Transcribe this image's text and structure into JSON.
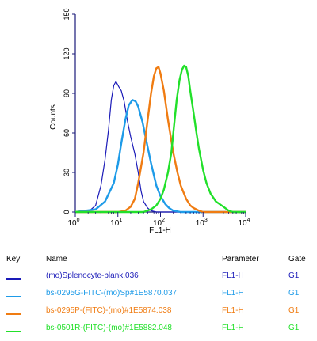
{
  "chart_data": {
    "type": "line",
    "xlabel": "FL1-H",
    "ylabel": "Counts",
    "x_scale": "log",
    "xlim": [
      1,
      10000
    ],
    "ylim": [
      0,
      150
    ],
    "x_ticks": [
      {
        "base": "10",
        "exp": "0"
      },
      {
        "base": "10",
        "exp": "1"
      },
      {
        "base": "10",
        "exp": "2"
      },
      {
        "base": "10",
        "exp": "3"
      },
      {
        "base": "10",
        "exp": "4"
      }
    ],
    "y_ticks": [
      "0",
      "30",
      "60",
      "90",
      "120",
      "150"
    ],
    "series": [
      {
        "name": "(mo)Splenocyte-blank.036",
        "color": "#1a1ab8",
        "points": [
          [
            1.0,
            0
          ],
          [
            2.0,
            0
          ],
          [
            3.0,
            5
          ],
          [
            4.0,
            20
          ],
          [
            5.0,
            40
          ],
          [
            6.0,
            62
          ],
          [
            7.0,
            85
          ],
          [
            8.0,
            96
          ],
          [
            9.0,
            99
          ],
          [
            10.5,
            95
          ],
          [
            12.0,
            92
          ],
          [
            14.0,
            84
          ],
          [
            17.0,
            68
          ],
          [
            20.0,
            57
          ],
          [
            25.0,
            44
          ],
          [
            30.0,
            30
          ],
          [
            35.0,
            16
          ],
          [
            40.0,
            8
          ],
          [
            50.0,
            3
          ],
          [
            60.0,
            1
          ],
          [
            80.0,
            0
          ],
          [
            10000,
            0
          ]
        ]
      },
      {
        "name": "bs-0295G-FITC-(mo)Sp#1E5870.037",
        "color": "#1e9be8",
        "points": [
          [
            1.0,
            0
          ],
          [
            3.0,
            2
          ],
          [
            5.0,
            8
          ],
          [
            8.0,
            22
          ],
          [
            10.0,
            36
          ],
          [
            12.0,
            52
          ],
          [
            15.0,
            70
          ],
          [
            18.0,
            81
          ],
          [
            22.0,
            85
          ],
          [
            26.0,
            84
          ],
          [
            30.0,
            80
          ],
          [
            38.0,
            68
          ],
          [
            48.0,
            52
          ],
          [
            60.0,
            37
          ],
          [
            80.0,
            20
          ],
          [
            100.0,
            12
          ],
          [
            130.0,
            6
          ],
          [
            160.0,
            3
          ],
          [
            200.0,
            1
          ],
          [
            300.0,
            0
          ],
          [
            10000,
            0
          ]
        ]
      },
      {
        "name": "bs-0295P-(FITC)-(mo)#1E5874.038",
        "color": "#f07c12",
        "points": [
          [
            1.0,
            0
          ],
          [
            10.0,
            0
          ],
          [
            15.0,
            1
          ],
          [
            20.0,
            4
          ],
          [
            25.0,
            10
          ],
          [
            30.0,
            22
          ],
          [
            40.0,
            45
          ],
          [
            50.0,
            70
          ],
          [
            60.0,
            90
          ],
          [
            70.0,
            103
          ],
          [
            80.0,
            109
          ],
          [
            90.0,
            110
          ],
          [
            100.0,
            105
          ],
          [
            120.0,
            92
          ],
          [
            150.0,
            70
          ],
          [
            200.0,
            45
          ],
          [
            250.0,
            30
          ],
          [
            300.0,
            20
          ],
          [
            400.0,
            10
          ],
          [
            500.0,
            5
          ],
          [
            600.0,
            3
          ],
          [
            800.0,
            1
          ],
          [
            1000.0,
            0
          ],
          [
            10000,
            0
          ]
        ]
      },
      {
        "name": "bs-0501R-(FITC)-(mo)#1E5882.048",
        "color": "#22e02a",
        "points": [
          [
            1.0,
            0
          ],
          [
            40.0,
            0
          ],
          [
            60.0,
            2
          ],
          [
            80.0,
            5
          ],
          [
            100.0,
            10
          ],
          [
            120.0,
            17
          ],
          [
            150.0,
            30
          ],
          [
            180.0,
            45
          ],
          [
            200.0,
            60
          ],
          [
            240.0,
            85
          ],
          [
            280.0,
            100
          ],
          [
            320.0,
            108
          ],
          [
            360.0,
            111
          ],
          [
            400.0,
            110
          ],
          [
            450.0,
            103
          ],
          [
            500.0,
            92
          ],
          [
            600.0,
            75
          ],
          [
            700.0,
            60
          ],
          [
            800.0,
            48
          ],
          [
            1000.0,
            32
          ],
          [
            1200.0,
            22
          ],
          [
            1500.0,
            14
          ],
          [
            2000.0,
            8
          ],
          [
            3000.0,
            4
          ],
          [
            4000.0,
            1
          ],
          [
            5000.0,
            0
          ],
          [
            10000,
            0
          ]
        ]
      }
    ]
  },
  "legend": {
    "headers": {
      "key": "Key",
      "name": "Name",
      "parameter": "Parameter",
      "gate": "Gate"
    },
    "rows": [
      {
        "name": "(mo)Splenocyte-blank.036",
        "parameter": "FL1-H",
        "gate": "G1",
        "color": "#1a1ab8"
      },
      {
        "name": "bs-0295G-FITC-(mo)Sp#1E5870.037",
        "parameter": "FL1-H",
        "gate": "G1",
        "color": "#1e9be8"
      },
      {
        "name": "bs-0295P-(FITC)-(mo)#1E5874.038",
        "parameter": "FL1-H",
        "gate": "G1",
        "color": "#f07c12"
      },
      {
        "name": "bs-0501R-(FITC)-(mo)#1E5882.048",
        "parameter": "FL1-H",
        "gate": "G1",
        "color": "#22e02a"
      }
    ]
  }
}
